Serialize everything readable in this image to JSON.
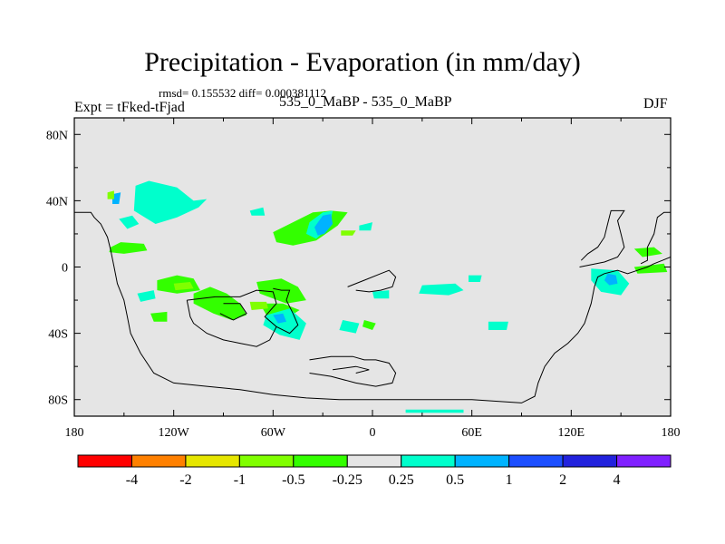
{
  "header": {
    "title": "Precipitation - Evaporation (in mm/day)",
    "stats": "rmsd= 0.155532 diff= 0.000381112",
    "left_label": "Expt = tFked-tFjad",
    "center_label": "535_0_MaBP - 535_0_MaBP",
    "right_label": "DJF"
  },
  "chart_data": {
    "type": "heatmap",
    "title": "Precipitation - Evaporation (in mm/day)",
    "xlabel": "",
    "ylabel": "",
    "xlim": [
      -180,
      180
    ],
    "ylim": [
      -90,
      90
    ],
    "x_ticks": [
      {
        "value": -180,
        "label": "180"
      },
      {
        "value": -120,
        "label": "120W"
      },
      {
        "value": -60,
        "label": "60W"
      },
      {
        "value": 0,
        "label": "0"
      },
      {
        "value": 60,
        "label": "60E"
      },
      {
        "value": 120,
        "label": "120E"
      },
      {
        "value": 180,
        "label": "180"
      }
    ],
    "y_ticks": [
      {
        "value": 80,
        "label": "80N"
      },
      {
        "value": 40,
        "label": "40N"
      },
      {
        "value": 0,
        "label": "0"
      },
      {
        "value": -40,
        "label": "40S"
      },
      {
        "value": -80,
        "label": "80S"
      }
    ],
    "background_color": "#e5e5e5",
    "colorbar": {
      "levels": [
        "-4",
        "-2",
        "-1",
        "-0.5",
        "-0.25",
        "0.25",
        "0.5",
        "1",
        "2",
        "4"
      ],
      "colors": [
        "#ff0000",
        "#ff8000",
        "#e6e600",
        "#80ff00",
        "#33ff00",
        "#e5e5e5",
        "#00ffcc",
        "#00b3ff",
        "#1c4fff",
        "#2222dd",
        "#8020ff"
      ]
    },
    "regions": [
      {
        "level": "0.5",
        "color": "#00ffcc",
        "points": [
          [
            -143,
            49
          ],
          [
            -135,
            52
          ],
          [
            -118,
            48
          ],
          [
            -108,
            40
          ],
          [
            -100,
            41
          ],
          [
            -105,
            36
          ],
          [
            -118,
            30
          ],
          [
            -131,
            26
          ],
          [
            -144,
            34
          ]
        ]
      },
      {
        "level": "-0.25",
        "color": "#33ff00",
        "points": [
          [
            -158,
            12
          ],
          [
            -152,
            15
          ],
          [
            -138,
            14
          ],
          [
            -136,
            10
          ],
          [
            -150,
            8
          ],
          [
            -159,
            9
          ]
        ]
      },
      {
        "level": "-0.25",
        "color": "#33ff00",
        "points": [
          [
            -130,
            -8
          ],
          [
            -118,
            -5
          ],
          [
            -108,
            -7
          ],
          [
            -104,
            -14
          ],
          [
            -118,
            -16
          ],
          [
            -130,
            -14
          ]
        ]
      },
      {
        "level": "-0.25",
        "color": "#33ff00",
        "points": [
          [
            -108,
            -16
          ],
          [
            -98,
            -12
          ],
          [
            -88,
            -16
          ],
          [
            -80,
            -22
          ],
          [
            -76,
            -29
          ],
          [
            -85,
            -32
          ],
          [
            -96,
            -28
          ],
          [
            -108,
            -22
          ]
        ]
      },
      {
        "level": "-0.25",
        "color": "#33ff00",
        "points": [
          [
            -70,
            -9
          ],
          [
            -55,
            -7
          ],
          [
            -45,
            -12
          ],
          [
            -40,
            -20
          ],
          [
            -52,
            -22
          ],
          [
            -68,
            -16
          ]
        ]
      },
      {
        "level": "-0.25",
        "color": "#33ff00",
        "points": [
          [
            -68,
            -22
          ],
          [
            -54,
            -22
          ],
          [
            -44,
            -26
          ],
          [
            -52,
            -31
          ],
          [
            -64,
            -29
          ]
        ]
      },
      {
        "level": "-0.25",
        "color": "#33ff00",
        "points": [
          [
            -60,
            21
          ],
          [
            -50,
            26
          ],
          [
            -36,
            33
          ],
          [
            -25,
            34
          ],
          [
            -15,
            33
          ],
          [
            -21,
            25
          ],
          [
            -34,
            16
          ],
          [
            -48,
            13
          ],
          [
            -58,
            15
          ]
        ]
      },
      {
        "level": "0.5",
        "color": "#00ffcc",
        "points": [
          [
            -38,
            27
          ],
          [
            -30,
            33
          ],
          [
            -24,
            34
          ],
          [
            -26,
            24
          ],
          [
            -34,
            17
          ],
          [
            -40,
            20
          ]
        ]
      },
      {
        "level": "0.5",
        "color": "#00ffcc",
        "points": [
          [
            -64,
            -29
          ],
          [
            -50,
            -25
          ],
          [
            -40,
            -34
          ],
          [
            -44,
            -44
          ],
          [
            -56,
            -41
          ],
          [
            -66,
            -35
          ]
        ]
      },
      {
        "level": "0.5",
        "color": "#00ffcc",
        "points": [
          [
            -18,
            -32
          ],
          [
            -8,
            -34
          ],
          [
            -10,
            -40
          ],
          [
            -20,
            -38
          ]
        ]
      },
      {
        "level": "0.5",
        "color": "#00ffcc",
        "points": [
          [
            30,
            -11
          ],
          [
            50,
            -10
          ],
          [
            55,
            -14
          ],
          [
            46,
            -17
          ],
          [
            28,
            -16
          ]
        ]
      },
      {
        "level": "0.5",
        "color": "#00ffcc",
        "points": [
          [
            132,
            -1
          ],
          [
            148,
            -2
          ],
          [
            155,
            -10
          ],
          [
            150,
            -17
          ],
          [
            138,
            -15
          ],
          [
            132,
            -8
          ]
        ]
      },
      {
        "level": "-0.25",
        "color": "#33ff00",
        "points": [
          [
            158,
            11
          ],
          [
            170,
            12
          ],
          [
            175,
            8
          ],
          [
            163,
            6
          ]
        ]
      },
      {
        "level": "-0.25",
        "color": "#33ff00",
        "points": [
          [
            158,
            0
          ],
          [
            176,
            2
          ],
          [
            178,
            -3
          ],
          [
            160,
            -4
          ]
        ]
      },
      {
        "level": "0.5",
        "color": "#00ffcc",
        "points": [
          [
            -153,
            29
          ],
          [
            -145,
            31
          ],
          [
            -141,
            26
          ],
          [
            -148,
            23
          ]
        ]
      },
      {
        "level": "0.5",
        "color": "#00ffcc",
        "points": [
          [
            -74,
            34
          ],
          [
            -66,
            36
          ],
          [
            -65,
            31
          ],
          [
            -73,
            31
          ]
        ]
      },
      {
        "level": "0.5",
        "color": "#00ffcc",
        "points": [
          [
            -142,
            -16
          ],
          [
            -132,
            -14
          ],
          [
            -131,
            -19
          ],
          [
            -140,
            -21
          ]
        ]
      },
      {
        "level": "-0.25",
        "color": "#33ff00",
        "points": [
          [
            -134,
            -28
          ],
          [
            -124,
            -27
          ],
          [
            -124,
            -33
          ],
          [
            -132,
            -33
          ]
        ]
      },
      {
        "level": "-0.25",
        "color": "#33ff00",
        "points": [
          [
            -5,
            -32
          ],
          [
            2,
            -34
          ],
          [
            0,
            -38
          ],
          [
            -6,
            -36
          ]
        ]
      },
      {
        "level": "0.5",
        "color": "#00ffcc",
        "points": [
          [
            0,
            -15
          ],
          [
            10,
            -14
          ],
          [
            10,
            -19
          ],
          [
            1,
            -19
          ]
        ]
      },
      {
        "level": "0.5",
        "color": "#00ffcc",
        "points": [
          [
            -8,
            25
          ],
          [
            0,
            27
          ],
          [
            -1,
            22
          ],
          [
            -8,
            22
          ]
        ]
      },
      {
        "level": "0.5",
        "color": "#00ffcc",
        "points": [
          [
            70,
            -33
          ],
          [
            82,
            -33
          ],
          [
            81,
            -38
          ],
          [
            70,
            -38
          ]
        ]
      },
      {
        "level": "0.5",
        "color": "#00ffcc",
        "points": [
          [
            58,
            -5
          ],
          [
            66,
            -5
          ],
          [
            65,
            -9
          ],
          [
            58,
            -9
          ]
        ]
      },
      {
        "level": "0.5",
        "color": "#00ffcc",
        "points": [
          [
            20,
            -86
          ],
          [
            55,
            -86
          ],
          [
            55,
            -88
          ],
          [
            20,
            -88
          ]
        ]
      },
      {
        "level": "1",
        "color": "#00b3ff",
        "points": [
          [
            -35,
            24
          ],
          [
            -30,
            31
          ],
          [
            -25,
            32
          ],
          [
            -24,
            26
          ],
          [
            -29,
            20
          ],
          [
            -33,
            19
          ]
        ]
      },
      {
        "level": "1",
        "color": "#00b3ff",
        "points": [
          [
            -157,
            44
          ],
          [
            -152,
            45
          ],
          [
            -153,
            38
          ],
          [
            -157,
            38
          ]
        ]
      },
      {
        "level": "1",
        "color": "#00b3ff",
        "points": [
          [
            142,
            -4
          ],
          [
            147,
            -5
          ],
          [
            148,
            -10
          ],
          [
            143,
            -11
          ],
          [
            140,
            -8
          ]
        ]
      },
      {
        "level": "1",
        "color": "#00b3ff",
        "points": [
          [
            -60,
            -29
          ],
          [
            -54,
            -28
          ],
          [
            -52,
            -33
          ],
          [
            -57,
            -34
          ]
        ]
      },
      {
        "level": "-0.5",
        "color": "#80ff00",
        "points": [
          [
            -120,
            -10
          ],
          [
            -110,
            -9
          ],
          [
            -108,
            -13
          ],
          [
            -119,
            -14
          ]
        ]
      },
      {
        "level": "-0.5",
        "color": "#80ff00",
        "points": [
          [
            -74,
            -21
          ],
          [
            -64,
            -21
          ],
          [
            -63,
            -25
          ],
          [
            -73,
            -26
          ]
        ]
      },
      {
        "level": "-0.5",
        "color": "#80ff00",
        "points": [
          [
            -160,
            45
          ],
          [
            -156,
            46
          ],
          [
            -156,
            41
          ],
          [
            -160,
            41
          ]
        ]
      },
      {
        "level": "-0.5",
        "color": "#80ff00",
        "points": [
          [
            -19,
            22
          ],
          [
            -10,
            22
          ],
          [
            -12,
            19
          ],
          [
            -19,
            19
          ]
        ]
      }
    ],
    "coastlines": [
      [
        [
          -180,
          33
        ],
        [
          -170,
          33
        ],
        [
          -168,
          30
        ],
        [
          -164,
          26
        ],
        [
          -162,
          22
        ],
        [
          -160,
          18
        ],
        [
          -158,
          10
        ],
        [
          -156,
          0
        ],
        [
          -154,
          -10
        ],
        [
          -150,
          -20
        ],
        [
          -148,
          -30
        ],
        [
          -146,
          -40
        ],
        [
          -140,
          -52
        ],
        [
          -132,
          -64
        ],
        [
          -120,
          -70
        ],
        [
          -100,
          -72
        ],
        [
          -80,
          -74
        ],
        [
          -60,
          -77
        ],
        [
          -40,
          -79
        ],
        [
          -20,
          -80
        ],
        [
          20,
          -80
        ],
        [
          60,
          -80
        ],
        [
          90,
          -82
        ],
        [
          98,
          -78
        ],
        [
          100,
          -70
        ],
        [
          104,
          -60
        ],
        [
          110,
          -52
        ],
        [
          118,
          -46
        ],
        [
          124,
          -40
        ],
        [
          128,
          -34
        ],
        [
          132,
          -22
        ],
        [
          134,
          -12
        ],
        [
          136,
          -6
        ],
        [
          140,
          -4
        ],
        [
          148,
          -2
        ],
        [
          154,
          -4
        ],
        [
          160,
          -2
        ],
        [
          166,
          0
        ],
        [
          170,
          2
        ],
        [
          175,
          4
        ],
        [
          180,
          6
        ]
      ],
      [
        [
          180,
          33
        ],
        [
          176,
          33
        ],
        [
          172,
          30
        ],
        [
          170,
          20
        ],
        [
          166,
          12
        ],
        [
          166,
          4
        ],
        [
          162,
          2
        ]
      ],
      [
        [
          125,
          0
        ],
        [
          140,
          3
        ],
        [
          148,
          6
        ],
        [
          152,
          12
        ],
        [
          150,
          20
        ],
        [
          148,
          28
        ],
        [
          152,
          34
        ],
        [
          144,
          34
        ],
        [
          142,
          26
        ],
        [
          140,
          18
        ],
        [
          136,
          12
        ],
        [
          130,
          8
        ],
        [
          126,
          4
        ]
      ],
      [
        [
          -112,
          -20
        ],
        [
          -95,
          -18
        ],
        [
          -80,
          -18
        ],
        [
          -70,
          -14
        ],
        [
          -60,
          -15
        ],
        [
          -58,
          -22
        ],
        [
          -65,
          -30
        ],
        [
          -58,
          -36
        ],
        [
          -50,
          -40
        ],
        [
          -45,
          -35
        ],
        [
          -48,
          -28
        ],
        [
          -52,
          -20
        ],
        [
          -50,
          -14
        ],
        [
          -55,
          -14
        ],
        [
          -60,
          -13
        ]
      ],
      [
        [
          -112,
          -20
        ],
        [
          -110,
          -30
        ],
        [
          -108,
          -34
        ],
        [
          -100,
          -40
        ],
        [
          -90,
          -44
        ],
        [
          -80,
          -46
        ],
        [
          -70,
          -48
        ],
        [
          -62,
          -44
        ],
        [
          -58,
          -36
        ]
      ],
      [
        [
          -90,
          -22
        ],
        [
          -80,
          -22
        ],
        [
          -76,
          -28
        ],
        [
          -84,
          -32
        ],
        [
          -92,
          -28
        ]
      ],
      [
        [
          -15,
          -12
        ],
        [
          -5,
          -8
        ],
        [
          5,
          -4
        ],
        [
          10,
          -2
        ],
        [
          14,
          -6
        ],
        [
          12,
          -12
        ],
        [
          5,
          -14
        ],
        [
          -2,
          -15
        ],
        [
          -10,
          -14
        ]
      ],
      [
        [
          -38,
          -56
        ],
        [
          -25,
          -54
        ],
        [
          -12,
          -54
        ],
        [
          -5,
          -56
        ],
        [
          2,
          -56
        ],
        [
          10,
          -58
        ],
        [
          14,
          -64
        ],
        [
          12,
          -70
        ],
        [
          2,
          -72
        ],
        [
          -10,
          -70
        ],
        [
          -25,
          -66
        ],
        [
          -38,
          -64
        ]
      ],
      [
        [
          -24,
          -62
        ],
        [
          -10,
          -60
        ],
        [
          -2,
          -62
        ],
        [
          -10,
          -64
        ]
      ]
    ]
  }
}
